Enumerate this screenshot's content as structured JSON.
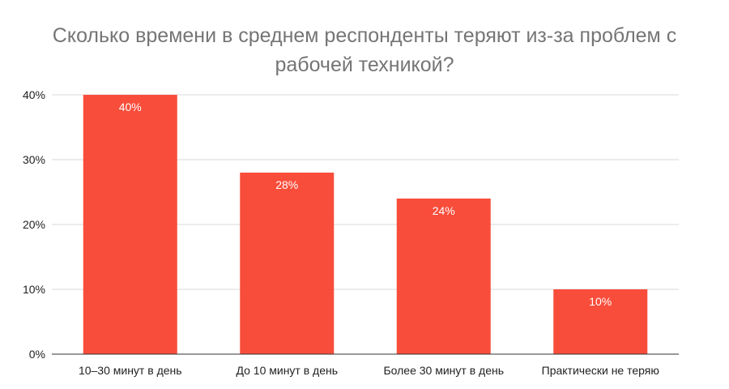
{
  "title_lines": [
    "Сколько времени в среднем респонденты теряют из-за проблем с",
    "рабочей техникой?"
  ],
  "colors": {
    "bar": "#F94D3B",
    "grid": "#D9D9D9",
    "axis": "#333333"
  },
  "chart_data": {
    "type": "bar",
    "title": "Сколько времени в среднем респонденты теряют из-за проблем с рабочей техникой?",
    "categories": [
      "10–30 минут в день",
      "До 10 минут в день",
      "Более 30 минут в день",
      "Практически не теряю"
    ],
    "values": [
      40,
      28,
      24,
      10
    ],
    "value_labels": [
      "40%",
      "28%",
      "24%",
      "10%"
    ],
    "ylim": [
      0,
      40
    ],
    "yticks": [
      0,
      10,
      20,
      30,
      40
    ],
    "ytick_labels": [
      "0%",
      "10%",
      "20%",
      "30%",
      "40%"
    ],
    "xlabel": "",
    "ylabel": "",
    "grid": true,
    "legend": "none"
  }
}
